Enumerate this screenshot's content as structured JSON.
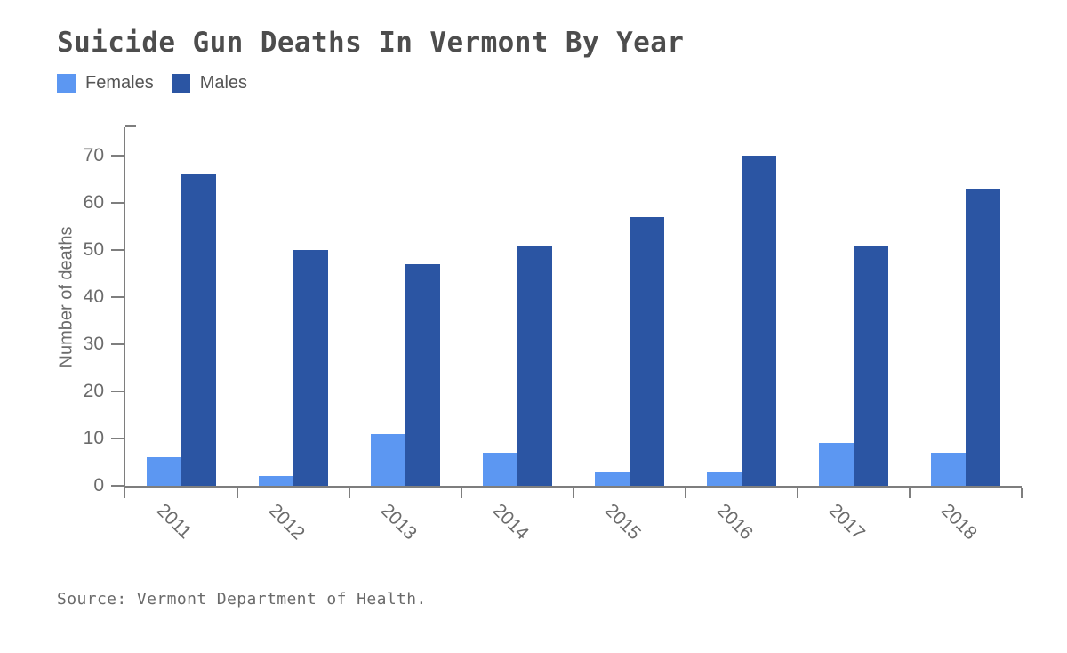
{
  "title": "Suicide Gun Deaths In Vermont By Year",
  "source_note": "Source: Vermont Department of Health.",
  "colors": {
    "females": "#5c97f2",
    "males": "#2b55a3",
    "axis": "#7e7e7e",
    "title_text": "#4d4d4d",
    "axis_text": "#6b6b6b",
    "legend_text": "#555555",
    "source_text": "#6a6a6a",
    "background": "#ffffff"
  },
  "chart_data": {
    "type": "bar",
    "title": "Suicide Gun Deaths In Vermont By Year",
    "categories": [
      "2011",
      "2012",
      "2013",
      "2014",
      "2015",
      "2016",
      "2017",
      "2018"
    ],
    "series": [
      {
        "name": "Females",
        "color": "#5c97f2",
        "values": [
          6,
          2,
          11,
          7,
          3,
          3,
          9,
          7
        ]
      },
      {
        "name": "Males",
        "color": "#2b55a3",
        "values": [
          66,
          50,
          47,
          51,
          57,
          70,
          51,
          63
        ]
      }
    ],
    "xlabel": "",
    "ylabel": "Number of deaths",
    "ylim": [
      0,
      76
    ],
    "yticks": [
      0,
      10,
      20,
      30,
      40,
      50,
      60,
      70
    ],
    "grid": false,
    "legend_position": "top-left",
    "x_tick_label_rotation_deg": 45,
    "source": "Source: Vermont Department of Health."
  }
}
